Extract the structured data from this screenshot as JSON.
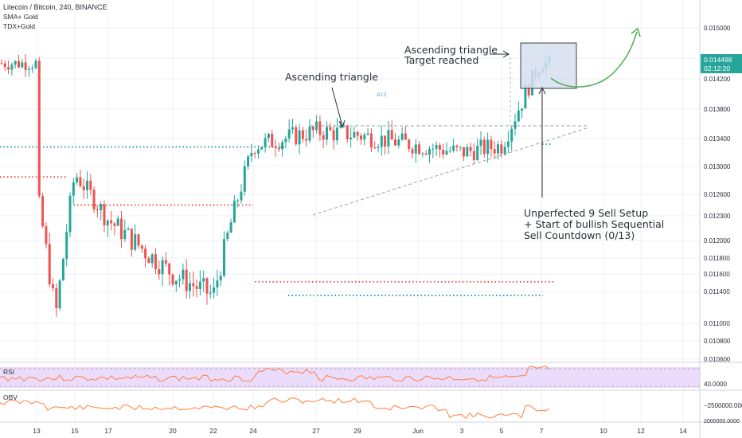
{
  "header": {
    "title": "Litecoin / Bitcoin, 240, BINANCE",
    "indicators": [
      "SMA+ Gold",
      "TDX+Gold"
    ]
  },
  "annotations": {
    "asc_triangle": "Ascending triangle",
    "target_line1": "Ascending triangle",
    "target_line2": "Target reached",
    "sell_line1": "Unperfected 9 Sell Setup",
    "sell_line2": "+ Start of bullish Sequential",
    "sell_line3": "Sell Countdown (0/13)",
    "a13": "A13"
  },
  "panes": {
    "rsi_label": "RSI",
    "rsi_level": "40.0000",
    "obv_label": "OBV",
    "obv_level1": "−2500000.0000",
    "obv_level2": "2000000.0000"
  },
  "price_tags": {
    "last_price": "0.014498",
    "countdown": "02:12:20"
  },
  "colors": {
    "up": "#26a69a",
    "down": "#ef5350",
    "rsi_line": "#ff7f3f",
    "rsi_band": "#ecdcfb",
    "obv_line": "#ff7f3f",
    "red_dots": "#ef5350",
    "green_dots": "#26a69a",
    "arrow_green": "#4caf50",
    "target_box": "#d6dff0"
  },
  "chart_data": {
    "type": "candlestick",
    "title": "Litecoin / Bitcoin, 240, BINANCE",
    "y_axis_ticks": [
      0.015,
      0.0146,
      0.0142,
      0.0138,
      0.0134,
      0.013,
      0.0126,
      0.0123,
      0.012,
      0.0118,
      0.0116,
      0.0114,
      0.011,
      0.0108,
      0.0106
    ],
    "y_axis_labels": [
      "0.015000",
      "0.014600",
      "0.014200",
      "0.013800",
      "0.013400",
      "0.013000",
      "0.012600",
      "0.012300",
      "0.012000",
      "0.011800",
      "0.011600",
      "0.011400",
      "0.011000",
      "0.010800",
      "0.010600"
    ],
    "x_axis_labels": [
      "13",
      "15",
      "17",
      "20",
      "22",
      "24",
      "27",
      "29",
      "Jun",
      "3",
      "5",
      "7",
      "10",
      "12",
      "14"
    ],
    "last_close": 0.014498,
    "key_levels": {
      "triangle_resistance": 0.0135,
      "red_resistance_early": 0.01285,
      "red_resistance_mid": 0.01245,
      "red_support": 0.01151,
      "green_support": 0.01135,
      "green_resistance": 0.01328
    },
    "series": [
      {
        "name": "price",
        "key_points": [
          {
            "x": "13",
            "y": 0.01265
          },
          {
            "x": "14",
            "y": 0.0111
          },
          {
            "x": "15",
            "y": 0.0129
          },
          {
            "x": "17",
            "y": 0.01225
          },
          {
            "x": "20",
            "y": 0.0116
          },
          {
            "x": "22",
            "y": 0.01135
          },
          {
            "x": "24",
            "y": 0.0133
          },
          {
            "x": "27",
            "y": 0.0135
          },
          {
            "x": "29",
            "y": 0.01345
          },
          {
            "x": "Jun",
            "y": 0.0133
          },
          {
            "x": "3",
            "y": 0.0132
          },
          {
            "x": "5",
            "y": 0.0133
          },
          {
            "x": "7",
            "y": 0.0145
          }
        ]
      }
    ]
  }
}
